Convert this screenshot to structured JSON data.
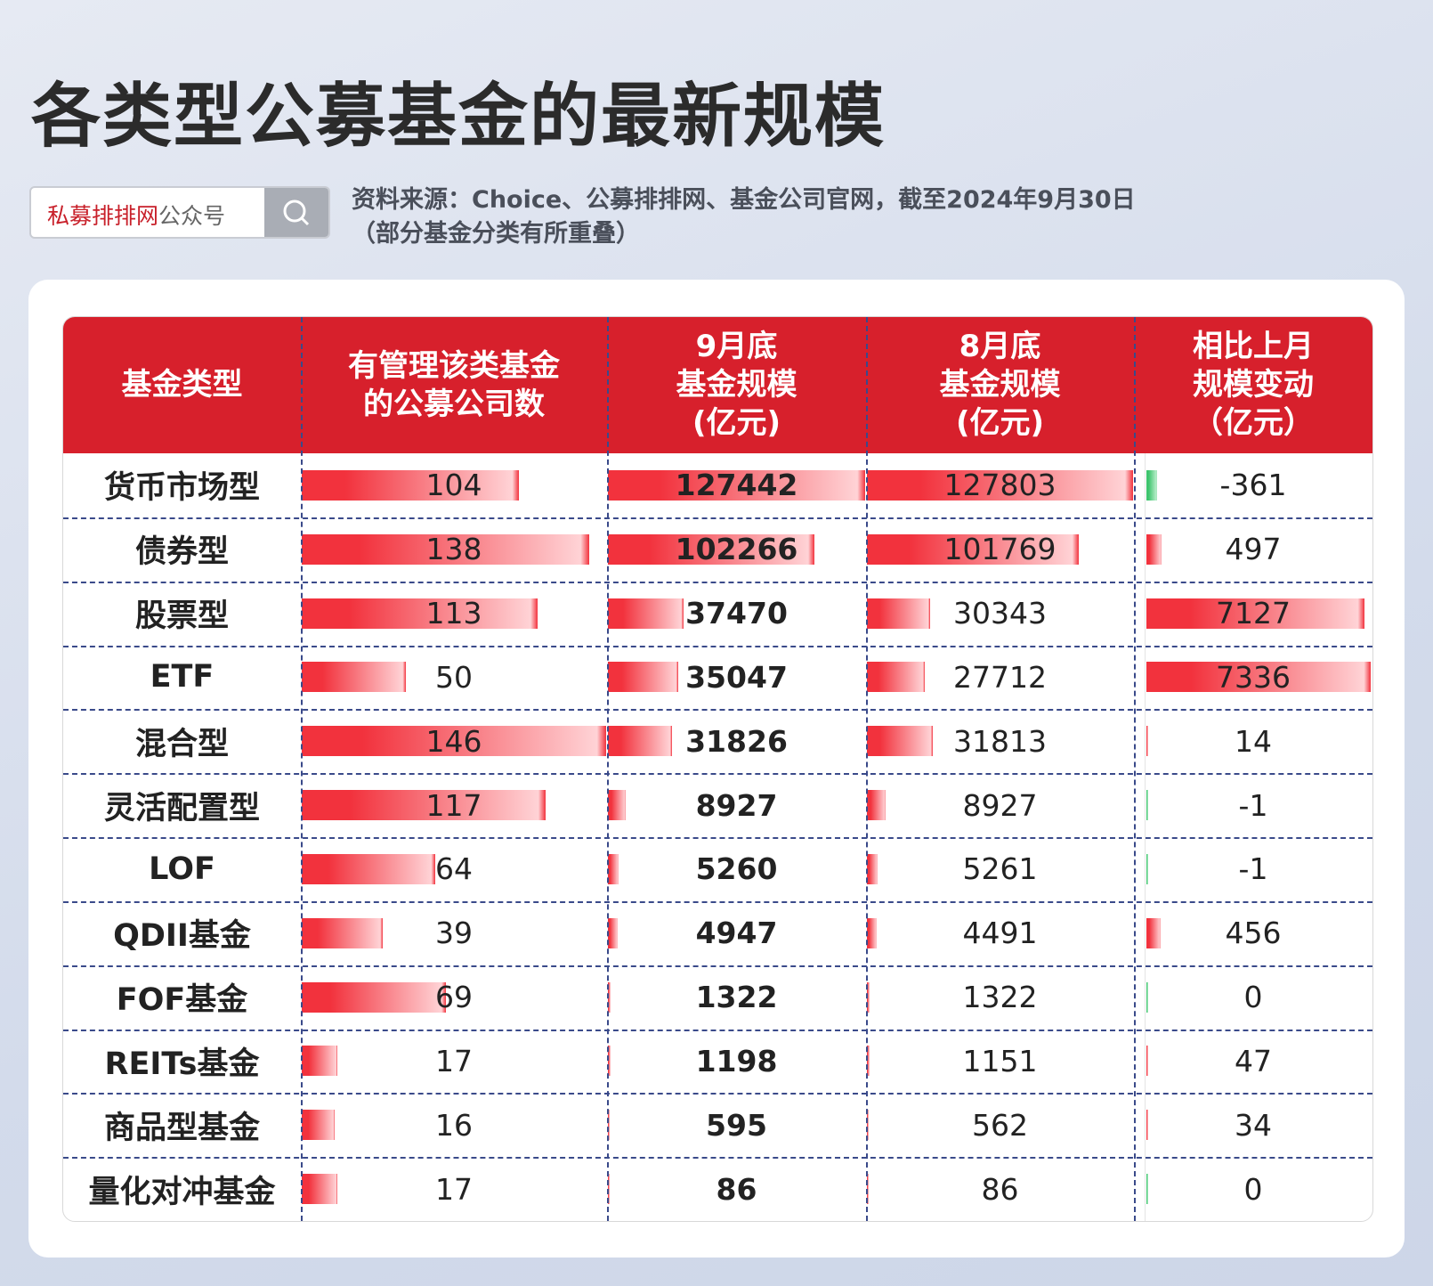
{
  "header": {
    "title": "各类型公募基金的最新规模",
    "search_label": [
      "私募排排网",
      "公众号"
    ],
    "source": [
      "资料来源：Choice、公募排排网、基金公司官网，截至2024年9月30日",
      "（部分基金分类有所重叠）"
    ]
  },
  "table": {
    "columns": [
      [
        "基金类型"
      ],
      [
        "有管理该类基金",
        "的公募公司数"
      ],
      [
        "9月底",
        "基金规模",
        "(亿元)"
      ],
      [
        "8月底",
        "基金规模",
        "(亿元)"
      ],
      [
        "相比上月",
        "规模变动",
        "（亿元）"
      ]
    ],
    "rows": [
      [
        "货币市场型",
        104,
        127442,
        127803,
        -361
      ],
      [
        "债券型",
        138,
        102266,
        101769,
        497
      ],
      [
        "股票型",
        113,
        37470,
        30343,
        7127
      ],
      [
        "ETF",
        50,
        35047,
        27712,
        7336
      ],
      [
        "混合型",
        146,
        31826,
        31813,
        14
      ],
      [
        "灵活配置型",
        117,
        8927,
        8927,
        -1
      ],
      [
        "LOF",
        64,
        5260,
        5261,
        -1
      ],
      [
        "QDII基金",
        39,
        4947,
        4491,
        456
      ],
      [
        "FOF基金",
        69,
        1322,
        1322,
        0
      ],
      [
        "REITs基金",
        17,
        1198,
        1151,
        47
      ],
      [
        "商品型基金",
        16,
        595,
        562,
        34
      ],
      [
        "量化对冲基金",
        17,
        86,
        86,
        0
      ]
    ]
  }
}
